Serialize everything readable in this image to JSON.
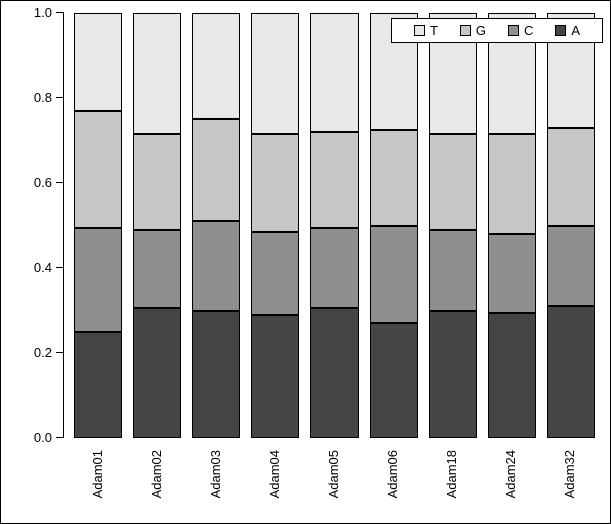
{
  "chart_data": {
    "type": "bar",
    "stacked": true,
    "title": "",
    "xlabel": "",
    "ylabel": "",
    "ylim": [
      0.0,
      1.0
    ],
    "grid": false,
    "categories": [
      "Adam01",
      "Adam02",
      "Adam03",
      "Adam04",
      "Adam05",
      "Adam06",
      "Adam18",
      "Adam24",
      "Adam32"
    ],
    "series": [
      {
        "name": "A",
        "color": "#454545",
        "values": [
          0.25,
          0.305,
          0.3,
          0.29,
          0.305,
          0.27,
          0.3,
          0.295,
          0.31
        ]
      },
      {
        "name": "C",
        "color": "#8f8f8f",
        "values": [
          0.245,
          0.185,
          0.21,
          0.195,
          0.19,
          0.23,
          0.19,
          0.185,
          0.19
        ]
      },
      {
        "name": "G",
        "color": "#c6c6c6",
        "values": [
          0.275,
          0.225,
          0.24,
          0.23,
          0.225,
          0.225,
          0.225,
          0.235,
          0.23
        ]
      },
      {
        "name": "T",
        "color": "#e8e8e8",
        "values": [
          0.23,
          0.285,
          0.25,
          0.285,
          0.28,
          0.275,
          0.285,
          0.285,
          0.27
        ]
      }
    ],
    "legend": {
      "position": "top-right",
      "order": [
        "T",
        "G",
        "C",
        "A"
      ]
    },
    "yticks": [
      0.0,
      0.2,
      0.4,
      0.6,
      0.8,
      1.0
    ],
    "ytick_labels": [
      "0.0",
      "0.2",
      "0.4",
      "0.6",
      "0.8",
      "1.0"
    ],
    "bar_border_color": "#000000"
  }
}
